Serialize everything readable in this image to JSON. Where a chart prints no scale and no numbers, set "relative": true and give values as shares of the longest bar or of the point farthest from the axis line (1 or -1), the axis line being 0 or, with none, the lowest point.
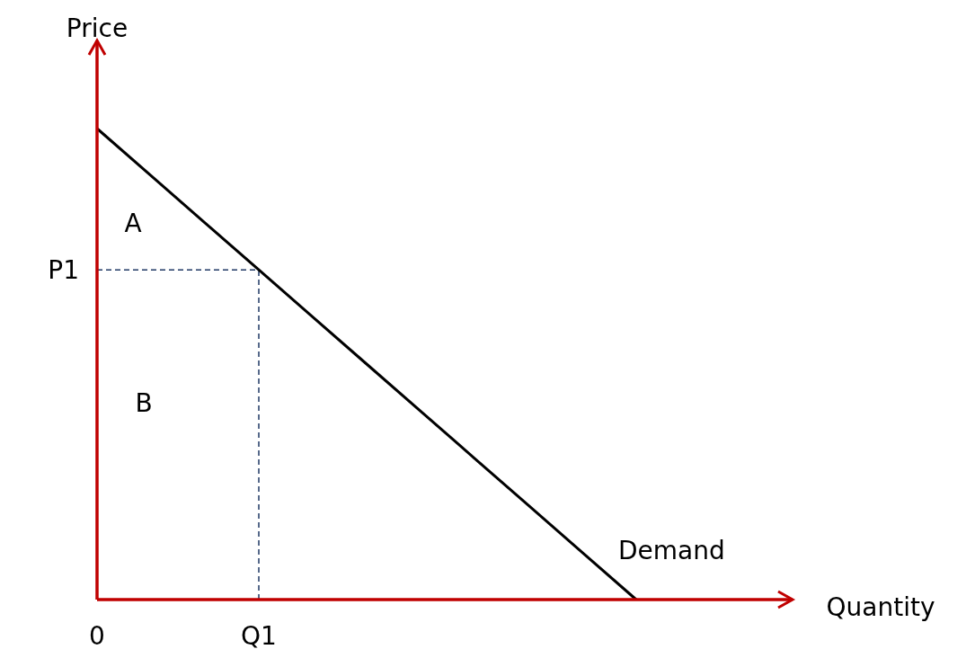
{
  "chart_data": {
    "type": "line",
    "relative": true,
    "ylabel": "Price",
    "categories": [
      "0",
      null,
      null,
      "Q1",
      null,
      null,
      null,
      null,
      null,
      null,
      null
    ],
    "series": [
      {
        "name": "Demand",
        "color": "#000000",
        "values": [
          1,
          0.9,
          0.8,
          0.7,
          0.6,
          0.5,
          0.4,
          0.3,
          0.2,
          0.1,
          0
        ]
      }
    ],
    "ref_lines": [
      {
        "axis": "y",
        "value": 0.7,
        "label": "P1",
        "color": "#1f3864",
        "line_style": "dashed"
      },
      {
        "axis": "x",
        "value": "Q1",
        "color": "#1f3864",
        "line_style": "dashed"
      }
    ],
    "annotations": [
      "A",
      "B",
      "Quantity"
    ],
    "grid": false,
    "legend": false
  }
}
